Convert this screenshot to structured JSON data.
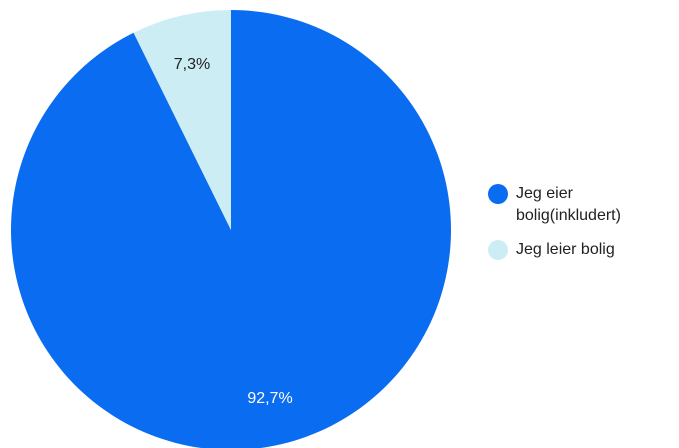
{
  "chart_data": {
    "type": "pie",
    "categories": [
      "Jeg eier bolig(inkludert)",
      "Jeg leier bolig"
    ],
    "values": [
      92.7,
      7.3
    ],
    "value_labels": [
      "92,7%",
      "7,3%"
    ],
    "colors": [
      "#0a6cf0",
      "#cdedf4"
    ],
    "label_colors": [
      "#ffffff",
      "#212121"
    ],
    "start_angle_deg": 0,
    "direction": "clockwise",
    "legend_position": "right"
  },
  "legend": {
    "items": [
      {
        "label": "Jeg eier bolig(inkludert)",
        "color": "#0a6cf0"
      },
      {
        "label": "Jeg leier bolig",
        "color": "#cdedf4"
      }
    ]
  }
}
